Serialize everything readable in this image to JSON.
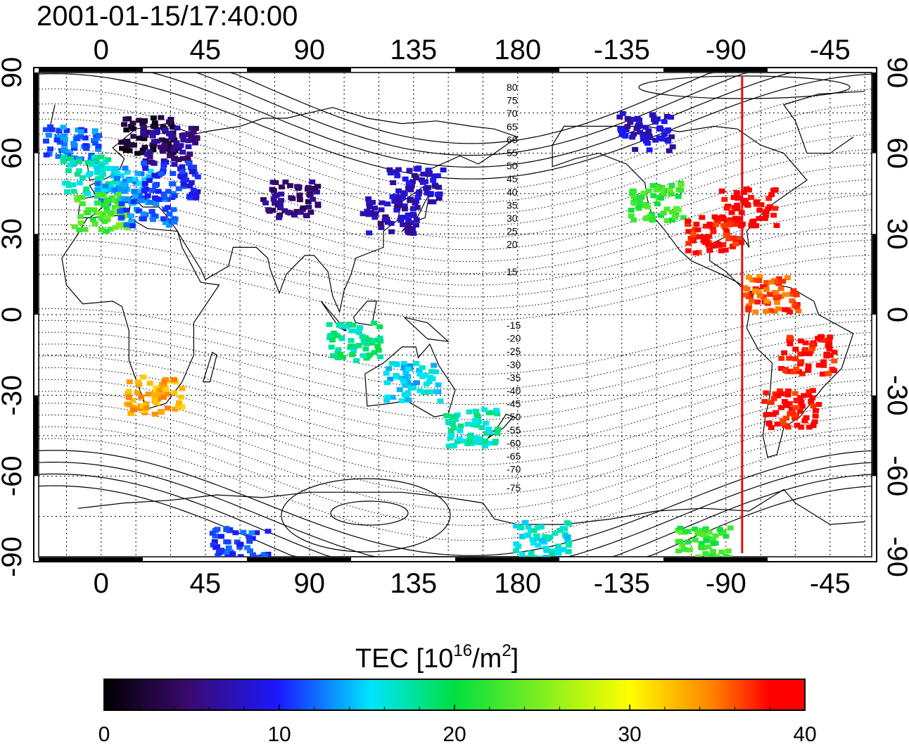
{
  "title": "2001-01-15/17:40:00",
  "map": {
    "top_lon_labels": [
      "0",
      "45",
      "90",
      "135",
      "180",
      "-135",
      "-90",
      "-45"
    ],
    "bottom_lon_labels": [
      "0",
      "45",
      "90",
      "135",
      "180",
      "-135",
      "-90",
      "-45"
    ],
    "left_lat_labels": [
      "90",
      "60",
      "30",
      "0",
      "-30",
      "-60",
      "-90"
    ],
    "right_lat_labels": [
      "90",
      "60",
      "30",
      "0",
      "-30",
      "-60",
      "-90"
    ],
    "north_contour_labels": [
      "80",
      "75",
      "70",
      "65",
      "60",
      "55",
      "50",
      "45",
      "40",
      "35",
      "30",
      "25",
      "20",
      "15"
    ],
    "south_contour_labels": [
      "-15",
      "-20",
      "-25",
      "-30",
      "-35",
      "-40",
      "-45",
      "-50",
      "-55",
      "-60",
      "-65",
      "-70",
      "-75"
    ],
    "marker_line": {
      "lon": -83,
      "color": "#e01010"
    },
    "tec_regions": [
      {
        "lon": -12,
        "lat": 63,
        "value": 12
      },
      {
        "lon": 20,
        "lat": 67,
        "value": 2
      },
      {
        "lon": 30,
        "lat": 63,
        "value": 6
      },
      {
        "lon": -5,
        "lat": 52,
        "value": 17
      },
      {
        "lon": 10,
        "lat": 48,
        "value": 14
      },
      {
        "lon": 30,
        "lat": 50,
        "value": 10
      },
      {
        "lon": 0,
        "lat": 38,
        "value": 23
      },
      {
        "lon": 20,
        "lat": 40,
        "value": 12
      },
      {
        "lon": 82,
        "lat": 43,
        "value": 5
      },
      {
        "lon": 125,
        "lat": 37,
        "value": 7
      },
      {
        "lon": 136,
        "lat": 48,
        "value": 8
      },
      {
        "lon": 160,
        "lat": -42,
        "value": 17
      },
      {
        "lon": 23,
        "lat": -30,
        "value": 33
      },
      {
        "lon": -125,
        "lat": 68,
        "value": 8
      },
      {
        "lon": -120,
        "lat": 42,
        "value": 22
      },
      {
        "lon": -80,
        "lat": 40,
        "value": 39
      },
      {
        "lon": -95,
        "lat": 30,
        "value": 38
      },
      {
        "lon": -70,
        "lat": 8,
        "value": 36
      },
      {
        "lon": -55,
        "lat": -15,
        "value": 38
      },
      {
        "lon": -62,
        "lat": -35,
        "value": 38
      },
      {
        "lon": 110,
        "lat": -10,
        "value": 18
      },
      {
        "lon": 135,
        "lat": -25,
        "value": 15
      },
      {
        "lon": 60,
        "lat": -86,
        "value": 11
      },
      {
        "lon": -100,
        "lat": -86,
        "value": 22
      },
      {
        "lon": -170,
        "lat": -84,
        "value": 16
      }
    ]
  },
  "colorbar": {
    "title_main": "TEC  [10",
    "title_sup1": "16",
    "title_mid": "/m",
    "title_sup2": "2",
    "title_end": "]",
    "min": 0,
    "max": 40,
    "tick_labels": [
      "0",
      "10",
      "20",
      "30",
      "40"
    ],
    "colors": [
      "#000000",
      "#3a0a6e",
      "#1a1aff",
      "#00e5ff",
      "#00e040",
      "#ffff00",
      "#ff8000",
      "#ff0000",
      "#ff0000"
    ]
  }
}
